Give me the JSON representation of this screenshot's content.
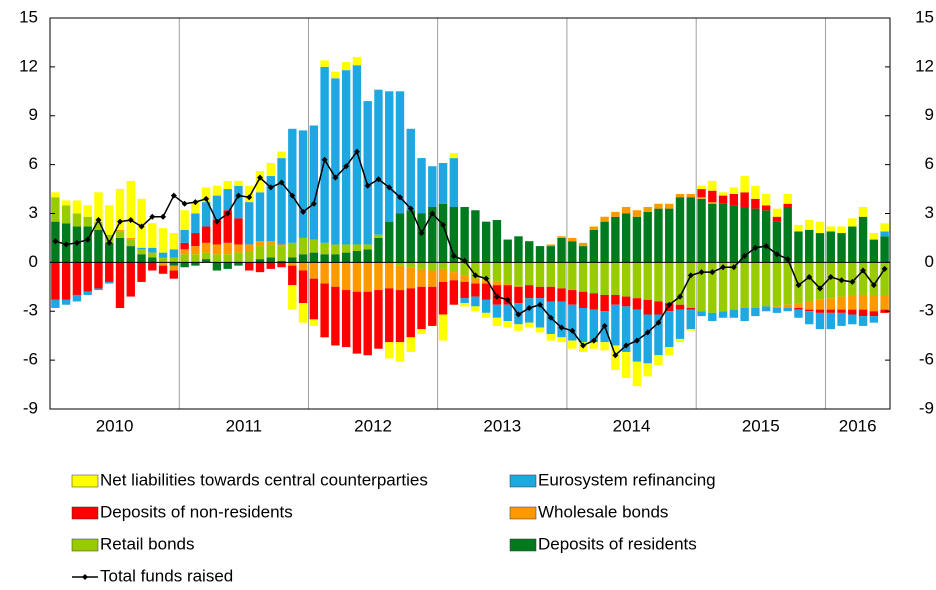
{
  "chart_data": {
    "type": "bar",
    "stacked": true,
    "year_labels": [
      "2010",
      "2011",
      "2012",
      "2013",
      "2014",
      "2015",
      "2016"
    ],
    "ylim": [
      -9,
      15
    ],
    "yticks": [
      -9,
      -6,
      -3,
      0,
      3,
      6,
      9,
      12,
      15
    ],
    "y2lim": [
      -9,
      15
    ],
    "y2ticks": [
      -9,
      -6,
      -3,
      0,
      3,
      6,
      9,
      12,
      15
    ],
    "series": [
      {
        "name": "Deposits of residents",
        "color": "#007a1e",
        "values": [
          2.5,
          2.4,
          2.2,
          2.2,
          2.0,
          1.2,
          1.5,
          1.0,
          0.5,
          0.3,
          0.0,
          -0.2,
          -0.3,
          -0.2,
          0.2,
          -0.5,
          -0.4,
          -0.2,
          0.0,
          0.2,
          0.3,
          0.1,
          0.3,
          0.5,
          0.6,
          0.5,
          0.5,
          0.6,
          0.7,
          0.8,
          1.5,
          2.5,
          3.0,
          3.2,
          3.0,
          3.4,
          3.6,
          3.4,
          3.4,
          3.2,
          2.5,
          2.6,
          1.4,
          1.6,
          1.3,
          1.0,
          1.0,
          1.5,
          1.3,
          1.0,
          2.0,
          2.5,
          2.8,
          3.0,
          2.8,
          3.1,
          3.3,
          3.3,
          4.0,
          4.0,
          3.9,
          3.6,
          3.6,
          3.5,
          3.4,
          3.3,
          3.2,
          2.5,
          3.4,
          1.9,
          2.0,
          1.8,
          1.9,
          1.8,
          2.2,
          2.8,
          1.4,
          1.6
        ]
      },
      {
        "name": "Retail bonds",
        "color": "#99cc00",
        "values": [
          1.5,
          1.1,
          0.8,
          0.6,
          0.5,
          0.5,
          0.4,
          0.4,
          0.3,
          0.3,
          0.3,
          0.3,
          0.5,
          0.5,
          0.4,
          0.5,
          0.5,
          0.6,
          0.7,
          0.8,
          0.8,
          0.9,
          0.9,
          1.0,
          0.8,
          0.7,
          0.6,
          0.5,
          0.4,
          0.3,
          0.2,
          0.0,
          -0.2,
          -0.3,
          -0.4,
          -0.5,
          -0.4,
          -0.6,
          -0.8,
          -1.0,
          -1.1,
          -1.2,
          -1.3,
          -1.4,
          -1.4,
          -1.5,
          -1.5,
          -1.6,
          -1.7,
          -1.8,
          -1.9,
          -2.0,
          -2.0,
          -2.1,
          -2.2,
          -2.3,
          -2.4,
          -2.5,
          -2.6,
          -2.8,
          -3.0,
          -3.1,
          -3.0,
          -2.9,
          -2.8,
          -2.8,
          -2.7,
          -2.7,
          -2.6,
          -2.5,
          -2.4,
          -2.3,
          -2.2,
          -2.1,
          -2.0,
          -2.0,
          -2.0,
          -2.0
        ]
      },
      {
        "name": "Wholesale bonds",
        "color": "#ff9900",
        "values": [
          0,
          0,
          0,
          0,
          0,
          0,
          0.1,
          0.1,
          0,
          0,
          -0.2,
          -0.3,
          0.3,
          0.5,
          0.6,
          0.6,
          0.7,
          0.5,
          0.4,
          0.3,
          0.2,
          0.1,
          -0.2,
          -0.5,
          -1.0,
          -1.3,
          -1.5,
          -1.7,
          -1.8,
          -1.8,
          -1.7,
          -1.6,
          -1.5,
          -1.3,
          -1.1,
          -1.0,
          -0.8,
          -0.5,
          -0.4,
          -0.3,
          -0.2,
          -0.2,
          -0.1,
          -0.1,
          0,
          0,
          0.1,
          0.1,
          0.2,
          0.2,
          0.2,
          0.3,
          0.3,
          0.4,
          0.4,
          0.3,
          0.3,
          0.3,
          0.2,
          0.2,
          0.1,
          0.1,
          0,
          0,
          0,
          0,
          0,
          -0.1,
          -0.2,
          -0.3,
          -0.5,
          -0.6,
          -0.7,
          -0.8,
          -0.9,
          -0.9,
          -1.0,
          -0.9
        ]
      },
      {
        "name": "Deposits of non-residents",
        "color": "#ff0000",
        "values": [
          -2.3,
          -2.3,
          -2.0,
          -1.8,
          -1.6,
          -1.2,
          -2.8,
          -2.1,
          -1.2,
          -0.5,
          -0.5,
          -0.5,
          0.4,
          0.8,
          1.0,
          1.5,
          2.0,
          1.6,
          -0.5,
          -0.6,
          -0.4,
          -0.3,
          -1.2,
          -2.0,
          -2.5,
          -3.3,
          -3.6,
          -3.5,
          -3.8,
          -3.9,
          -3.6,
          -3.3,
          -3.2,
          -3.0,
          -2.6,
          -2.4,
          -2.0,
          -1.5,
          -1.0,
          -0.8,
          -1.0,
          -1.2,
          -1.2,
          -1.0,
          -0.8,
          -0.7,
          -0.9,
          -0.8,
          -0.9,
          -1.0,
          -1.0,
          -1.0,
          -0.6,
          -0.6,
          -0.7,
          -0.9,
          -0.8,
          -0.5,
          -0.3,
          -0.1,
          0.5,
          0.7,
          0.5,
          0.7,
          0.9,
          0.6,
          0.3,
          0.3,
          0.2,
          -0.1,
          -0.1,
          -0.2,
          -0.2,
          -0.2,
          -0.3,
          -0.4,
          -0.3,
          -0.2
        ]
      },
      {
        "name": "Eurosystem refinancing",
        "color": "#1ea7e1",
        "values": [
          -0.5,
          -0.3,
          -0.4,
          -0.2,
          -0.1,
          -0.1,
          0,
          0,
          0.1,
          0.3,
          0.3,
          0.5,
          0.8,
          1.2,
          1.5,
          1.5,
          1.3,
          2.0,
          2.6,
          3.0,
          4.0,
          5.3,
          7.0,
          6.6,
          7.0,
          10.8,
          10.2,
          10.7,
          11.0,
          8.8,
          8.9,
          8.0,
          7.5,
          5.0,
          3.4,
          2.5,
          2.5,
          3.0,
          -0.3,
          -0.6,
          -0.8,
          -0.8,
          -1.0,
          -1.3,
          -1.5,
          -1.8,
          -2.0,
          -2.2,
          -2.2,
          -2.1,
          -2.0,
          -1.9,
          -2.5,
          -2.8,
          -3.2,
          -3.0,
          -2.5,
          -2.2,
          -1.8,
          -1.2,
          -0.3,
          -0.5,
          -0.4,
          -0.5,
          -0.8,
          -0.5,
          -0.3,
          -0.3,
          -0.2,
          -0.5,
          -0.8,
          -1.0,
          -1.0,
          -0.8,
          -0.6,
          -0.6,
          -0.4,
          0.3
        ]
      },
      {
        "name": "Net liabilities towards central counterparties",
        "color": "#ffff00",
        "values": [
          0.3,
          0.3,
          0.8,
          0.7,
          1.8,
          1.8,
          2.5,
          3.5,
          3.0,
          1.5,
          1.5,
          1.0,
          1.2,
          0.7,
          0.9,
          0.6,
          0.5,
          0.3,
          1.0,
          1.3,
          0.8,
          0.4,
          -1.5,
          -1.2,
          -0.4,
          0.4,
          0.4,
          0.5,
          0.5,
          0,
          0,
          -1.0,
          -1.2,
          -0.9,
          -0.3,
          0,
          -1.6,
          0.3,
          -0.2,
          -0.3,
          -0.3,
          -0.5,
          -0.4,
          -0.4,
          -0.3,
          -0.3,
          -0.4,
          -0.3,
          -0.5,
          -0.6,
          -0.4,
          -0.5,
          -1.5,
          -1.6,
          -1.5,
          -0.8,
          -0.6,
          -0.5,
          -0.2,
          -0.1,
          0.2,
          0.6,
          0.2,
          0.4,
          1.0,
          0.8,
          0.7,
          0.5,
          0.6,
          0.4,
          0.6,
          0.7,
          0.3,
          0.4,
          0.5,
          0.6,
          0.4,
          0.5
        ]
      },
      {
        "name": "Total funds raised",
        "type": "line",
        "color": "#000000",
        "values": [
          1.3,
          1.1,
          1.2,
          1.4,
          2.6,
          1.2,
          2.5,
          2.6,
          2.2,
          2.8,
          2.8,
          4.1,
          3.6,
          3.7,
          3.9,
          2.5,
          3.0,
          4.1,
          4.0,
          5.2,
          4.6,
          4.9,
          4.1,
          3.1,
          3.6,
          6.3,
          5.2,
          5.9,
          6.8,
          4.7,
          5.1,
          4.6,
          4.0,
          3.3,
          1.8,
          3.0,
          2.3,
          0.4,
          0.1,
          -0.8,
          -1.0,
          -2.1,
          -2.3,
          -3.2,
          -2.8,
          -2.6,
          -3.4,
          -4.0,
          -4.2,
          -5.1,
          -4.8,
          -3.9,
          -5.7,
          -5.1,
          -4.8,
          -4.3,
          -3.7,
          -2.6,
          -2.1,
          -0.8,
          -0.6,
          -0.6,
          -0.3,
          -0.3,
          0.4,
          0.9,
          1.0,
          0.5,
          0.2,
          -1.4,
          -0.9,
          -1.6,
          -0.9,
          -1.1,
          -1.2,
          -0.5,
          -1.4,
          -0.4
        ]
      }
    ],
    "legend_order": [
      5,
      4,
      3,
      2,
      1,
      0,
      6
    ]
  }
}
